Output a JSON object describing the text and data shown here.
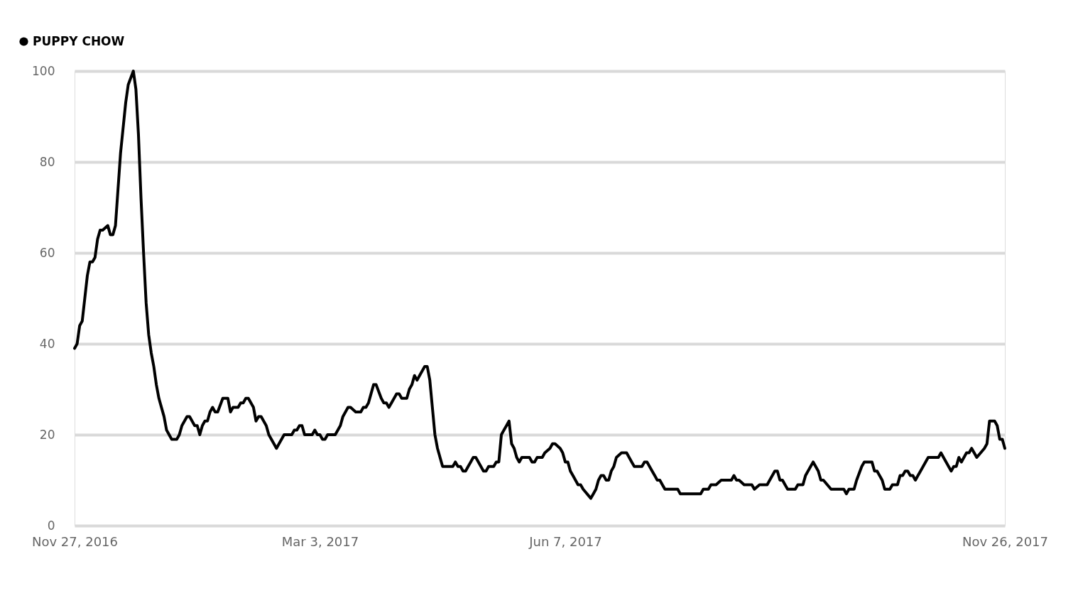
{
  "chart_data": {
    "type": "line",
    "x": [
      "2016-11-27",
      "2016-11-28",
      "2016-11-29",
      "2016-11-30",
      "2016-12-01",
      "2016-12-02",
      "2016-12-03",
      "2016-12-04",
      "2016-12-05",
      "2016-12-06",
      "2016-12-07",
      "2016-12-08",
      "2016-12-10",
      "2016-12-11",
      "2016-12-12",
      "2016-12-13",
      "2016-12-14",
      "2016-12-15",
      "2016-12-17",
      "2016-12-18",
      "2016-12-20",
      "2016-12-21",
      "2016-12-22",
      "2016-12-23",
      "2016-12-24",
      "2016-12-25",
      "2016-12-26",
      "2016-12-27",
      "2016-12-28",
      "2016-12-29",
      "2016-12-30",
      "2016-12-31",
      "2017-01-01",
      "2017-01-02",
      "2017-01-04",
      "2017-01-06",
      "2017-01-07",
      "2017-01-08",
      "2017-01-10",
      "2017-01-11",
      "2017-01-13",
      "2017-01-14",
      "2017-01-15",
      "2017-01-16",
      "2017-01-17",
      "2017-01-18",
      "2017-01-19",
      "2017-01-20",
      "2017-01-21",
      "2017-01-22",
      "2017-01-24",
      "2017-01-26",
      "2017-01-27",
      "2017-01-28",
      "2017-01-30",
      "2017-01-31",
      "2017-02-01",
      "2017-02-02",
      "2017-02-03",
      "2017-02-05",
      "2017-02-06",
      "2017-02-07",
      "2017-02-08",
      "2017-02-10",
      "2017-02-11",
      "2017-02-13",
      "2017-02-14",
      "2017-02-15",
      "2017-02-17",
      "2017-02-20",
      "2017-02-21",
      "2017-02-22",
      "2017-02-23",
      "2017-02-24",
      "2017-02-25",
      "2017-02-28",
      "2017-03-01",
      "2017-03-02",
      "2017-03-03",
      "2017-03-04",
      "2017-03-05",
      "2017-03-06",
      "2017-03-09",
      "2017-03-11",
      "2017-03-12",
      "2017-03-13",
      "2017-03-14",
      "2017-03-15",
      "2017-03-17",
      "2017-03-19",
      "2017-03-20",
      "2017-03-21",
      "2017-03-22",
      "2017-03-23",
      "2017-03-24",
      "2017-03-25",
      "2017-03-27",
      "2017-03-28",
      "2017-03-29",
      "2017-03-30",
      "2017-03-31",
      "2017-04-02",
      "2017-04-03",
      "2017-04-04",
      "2017-04-06",
      "2017-04-07",
      "2017-04-08",
      "2017-04-09",
      "2017-04-10",
      "2017-04-11",
      "2017-04-13",
      "2017-04-14",
      "2017-04-15",
      "2017-04-16",
      "2017-04-17",
      "2017-04-18",
      "2017-04-20",
      "2017-04-24",
      "2017-04-25",
      "2017-04-26",
      "2017-04-27",
      "2017-04-28",
      "2017-04-29",
      "2017-04-30",
      "2017-05-01",
      "2017-05-02",
      "2017-05-03",
      "2017-05-06",
      "2017-05-07",
      "2017-05-08",
      "2017-05-10",
      "2017-05-11",
      "2017-05-12",
      "2017-05-13",
      "2017-05-14",
      "2017-05-15",
      "2017-05-16",
      "2017-05-17",
      "2017-05-18",
      "2017-05-19",
      "2017-05-20",
      "2017-05-21",
      "2017-05-24",
      "2017-05-25",
      "2017-05-26",
      "2017-05-27",
      "2017-05-29",
      "2017-05-30",
      "2017-06-01",
      "2017-06-02",
      "2017-06-03",
      "2017-06-05",
      "2017-06-06",
      "2017-06-07",
      "2017-06-08",
      "2017-06-09",
      "2017-06-10",
      "2017-06-12",
      "2017-06-13",
      "2017-06-14",
      "2017-06-17",
      "2017-06-18",
      "2017-06-19",
      "2017-06-20",
      "2017-06-21",
      "2017-06-22",
      "2017-06-23",
      "2017-06-24",
      "2017-06-25",
      "2017-06-26",
      "2017-06-27",
      "2017-06-29",
      "2017-07-01",
      "2017-07-03",
      "2017-07-04",
      "2017-07-07",
      "2017-07-08",
      "2017-07-09",
      "2017-07-11",
      "2017-07-12",
      "2017-07-13",
      "2017-07-14",
      "2017-07-15",
      "2017-07-16",
      "2017-07-21",
      "2017-07-22",
      "2017-07-30",
      "2017-07-31",
      "2017-08-02",
      "2017-08-03",
      "2017-08-05",
      "2017-08-07",
      "2017-08-11",
      "2017-08-12",
      "2017-08-13",
      "2017-08-14",
      "2017-08-16",
      "2017-08-19",
      "2017-08-20",
      "2017-08-22",
      "2017-08-25",
      "2017-08-26",
      "2017-08-28",
      "2017-08-29",
      "2017-08-30",
      "2017-08-31",
      "2017-09-01",
      "2017-09-02",
      "2017-09-05",
      "2017-09-06",
      "2017-09-08",
      "2017-09-09",
      "2017-09-11",
      "2017-09-12",
      "2017-09-14",
      "2017-09-15",
      "2017-09-16",
      "2017-09-19",
      "2017-09-24",
      "2017-09-25",
      "2017-09-26",
      "2017-09-28",
      "2017-09-29",
      "2017-10-01",
      "2017-10-02",
      "2017-10-05",
      "2017-10-06",
      "2017-10-07",
      "2017-10-09",
      "2017-10-10",
      "2017-10-12",
      "2017-10-13",
      "2017-10-15",
      "2017-10-16",
      "2017-10-17",
      "2017-10-18",
      "2017-10-19",
      "2017-10-20",
      "2017-10-21",
      "2017-10-22",
      "2017-10-23",
      "2017-10-24",
      "2017-10-27",
      "2017-10-30",
      "2017-10-31",
      "2017-11-01",
      "2017-11-02",
      "2017-11-05",
      "2017-11-06",
      "2017-11-07",
      "2017-11-08",
      "2017-11-09",
      "2017-11-11",
      "2017-11-12",
      "2017-11-13",
      "2017-11-14",
      "2017-11-15",
      "2017-11-18",
      "2017-11-19",
      "2017-11-20",
      "2017-11-22",
      "2017-11-23",
      "2017-11-24",
      "2017-11-25",
      "2017-11-26"
    ],
    "series": [
      {
        "name": "PUPPY CHOW",
        "color": "#000000",
        "values": [
          39,
          40,
          44,
          45,
          50,
          55,
          58,
          58,
          59,
          63,
          65,
          65,
          66,
          64,
          64,
          66,
          74,
          82,
          93,
          97,
          100,
          96,
          86,
          72,
          60,
          49,
          42,
          38,
          35,
          31,
          28,
          26,
          24,
          21,
          19,
          19,
          20,
          22,
          24,
          24,
          22,
          22,
          20,
          22,
          23,
          23,
          25,
          26,
          25,
          25,
          28,
          28,
          25,
          26,
          26,
          27,
          27,
          28,
          28,
          26,
          23,
          24,
          24,
          22,
          20,
          18,
          17,
          18,
          20,
          20,
          21,
          21,
          22,
          22,
          20,
          20,
          21,
          20,
          20,
          19,
          19,
          20,
          20,
          22,
          24,
          25,
          26,
          26,
          25,
          25,
          26,
          26,
          27,
          29,
          31,
          31,
          28,
          27,
          27,
          26,
          27,
          29,
          29,
          28,
          28,
          30,
          31,
          33,
          32,
          33,
          35,
          35,
          32,
          26,
          20,
          17,
          13,
          13,
          14,
          13,
          13,
          12,
          12,
          13,
          14,
          15,
          15,
          12,
          12,
          13,
          13,
          14,
          14,
          20,
          21,
          22,
          23,
          18,
          17,
          15,
          14,
          15,
          15,
          14,
          14,
          15,
          15,
          16,
          17,
          18,
          18,
          17,
          16,
          14,
          14,
          12,
          11,
          9,
          9,
          8,
          6,
          7,
          8,
          10,
          11,
          11,
          10,
          10,
          12,
          13,
          15,
          16,
          16,
          14,
          13,
          13,
          14,
          14,
          12,
          11,
          10,
          10,
          9,
          8,
          8,
          7,
          7,
          8,
          8,
          9,
          9,
          10,
          10,
          11,
          10,
          10,
          9,
          9,
          8,
          9,
          9,
          10,
          12,
          12,
          10,
          10,
          9,
          8,
          8,
          9,
          9,
          11,
          13,
          14,
          12,
          10,
          10,
          8,
          8,
          7,
          8,
          8,
          10,
          13,
          14,
          14,
          12,
          12,
          10,
          8,
          8,
          9,
          9,
          11,
          11,
          12,
          12,
          11,
          11,
          10,
          11,
          12,
          15,
          15,
          15,
          16,
          15,
          12,
          13,
          13,
          15,
          14,
          16,
          16,
          17,
          16,
          15,
          17,
          18,
          23,
          23,
          22,
          19,
          19,
          17
        ]
      }
    ],
    "xlim": [
      "2016-11-27",
      "2017-11-26"
    ],
    "xticks": [
      {
        "value": "2016-11-27",
        "label": "Nov 27, 2016"
      },
      {
        "value": "2017-03-03",
        "label": "Mar 3, 2017"
      },
      {
        "value": "2017-06-07",
        "label": "Jun 7, 2017"
      },
      {
        "value": "2017-11-26",
        "label": "Nov 26, 2017"
      }
    ],
    "ylim": [
      0,
      100
    ],
    "yticks": [
      0,
      20,
      40,
      60,
      80,
      100
    ],
    "grid": "y",
    "legend": "top left",
    "line_style": "solid"
  }
}
